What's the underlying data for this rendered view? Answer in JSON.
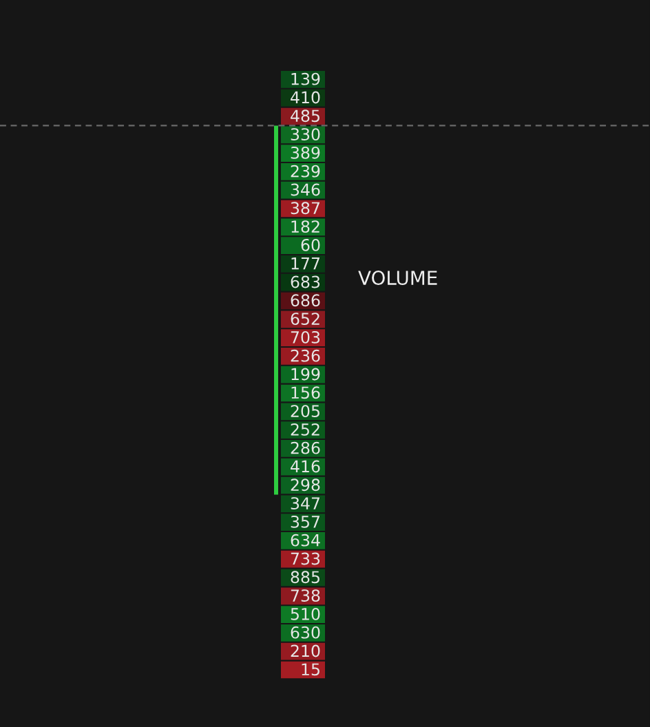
{
  "chart_data": {
    "type": "heatmap",
    "categories": [
      null
    ],
    "y_categories": [
      null,
      null,
      null,
      null,
      null,
      null,
      null,
      null,
      null,
      null,
      null,
      null,
      null,
      null,
      null,
      null,
      null,
      null,
      null,
      null,
      null,
      null,
      null,
      null,
      null,
      null,
      null,
      null,
      null,
      null,
      null,
      null,
      null
    ],
    "cells": [
      [
        139
      ],
      [
        410
      ],
      [
        485
      ],
      [
        330
      ],
      [
        389
      ],
      [
        239
      ],
      [
        346
      ],
      [
        387
      ],
      [
        182
      ],
      [
        60
      ],
      [
        177
      ],
      [
        683
      ],
      [
        686
      ],
      [
        652
      ],
      [
        703
      ],
      [
        236
      ],
      [
        199
      ],
      [
        156
      ],
      [
        205
      ],
      [
        252
      ],
      [
        286
      ],
      [
        416
      ],
      [
        298
      ],
      [
        347
      ],
      [
        357
      ],
      [
        634
      ],
      [
        733
      ],
      [
        885
      ],
      [
        738
      ],
      [
        510
      ],
      [
        630
      ],
      [
        210
      ],
      [
        15
      ]
    ],
    "colors": [
      "#0a4d1a",
      "#0b3a12",
      "#8b1a1f",
      "#0e6b22",
      "#0d7a25",
      "#0c7524",
      "#0b6a22",
      "#a01c22",
      "#0d7324",
      "#0b6b21",
      "#083d14",
      "#073811",
      "#5a1015",
      "#8c1a20",
      "#a01c22",
      "#9a1b21",
      "#0b6a22",
      "#0d7324",
      "#0a5f1e",
      "#0a5a1c",
      "#0b6020",
      "#0c6a22",
      "#0b6221",
      "#0a521b",
      "#0a561c",
      "#0d7023",
      "#a01c22",
      "#0b4a18",
      "#8f1a20",
      "#0e7a25",
      "#0c6e22",
      "#961b21",
      "#a51d23"
    ],
    "data_labels": true,
    "annotations": [
      "VOLUME"
    ]
  }
}
